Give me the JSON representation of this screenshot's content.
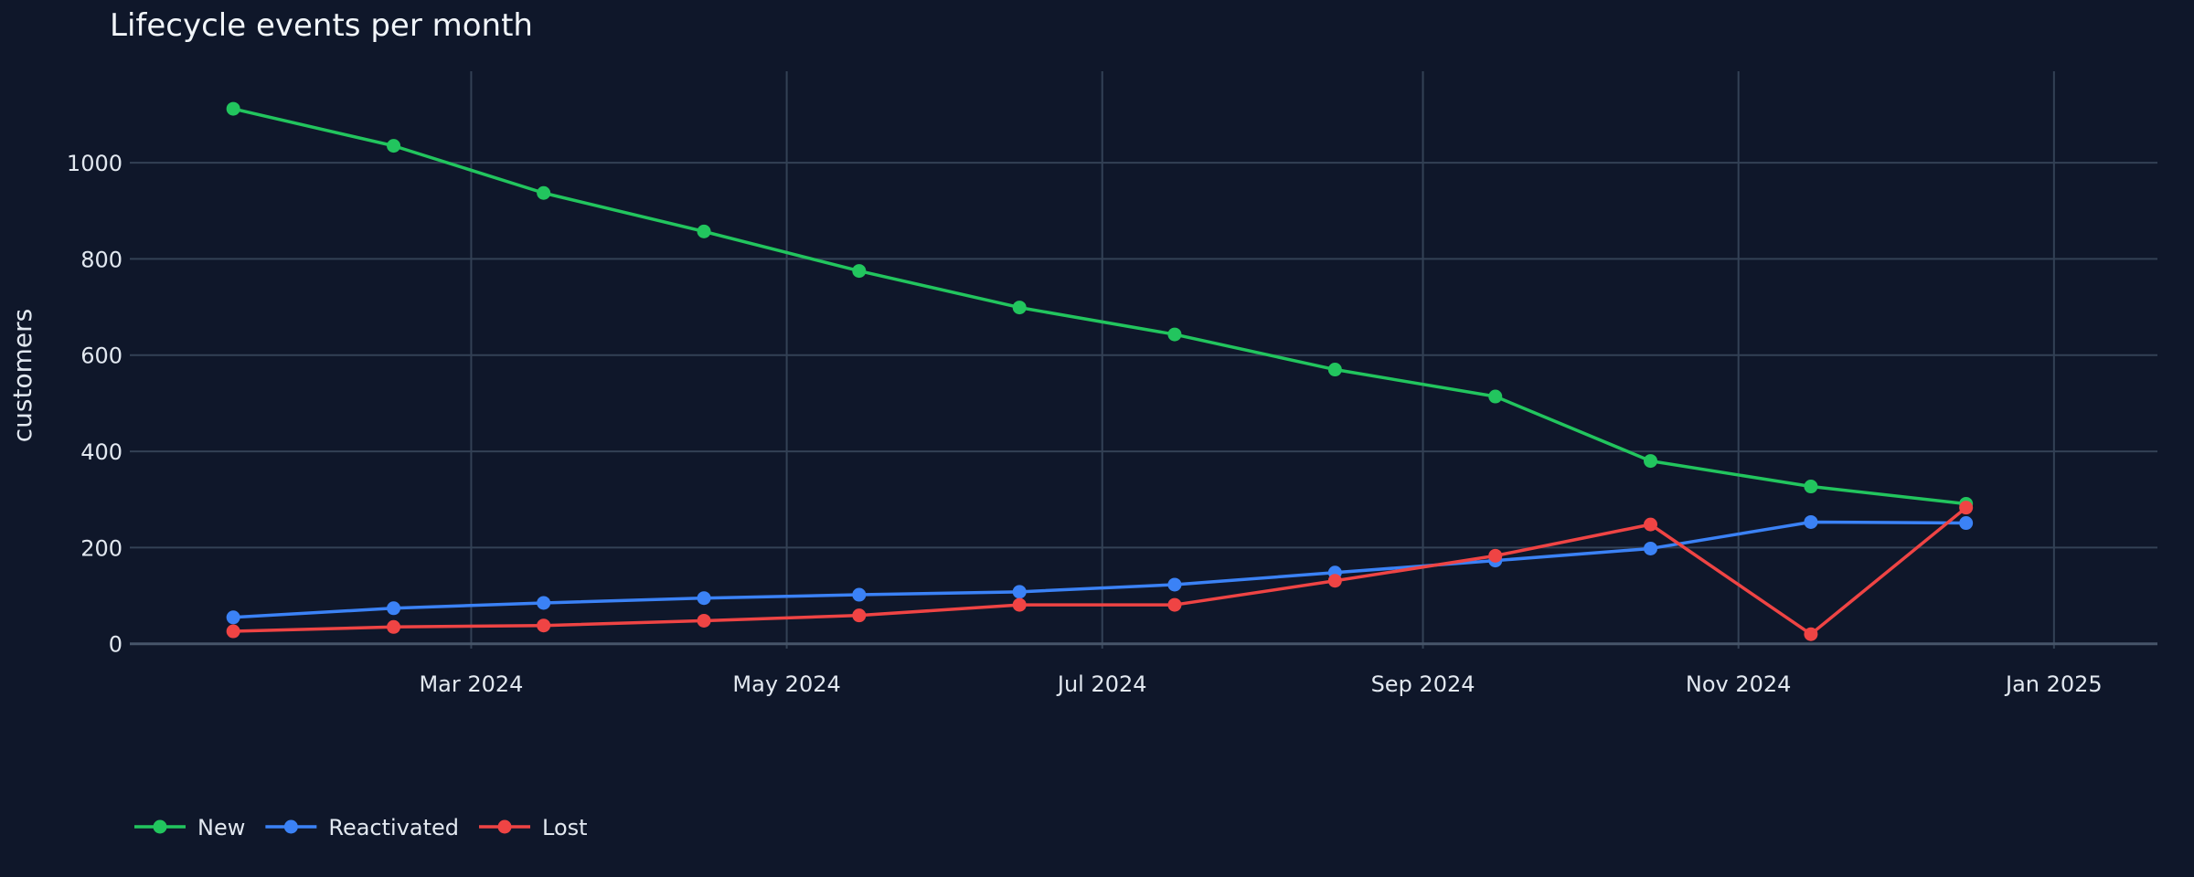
{
  "chart_data": {
    "type": "line",
    "title": "Lifecycle events per month",
    "xlabel": "",
    "ylabel": "customers",
    "x": [
      "2024-01-15",
      "2024-02-15",
      "2024-03-15",
      "2024-04-15",
      "2024-05-15",
      "2024-06-15",
      "2024-07-15",
      "2024-08-15",
      "2024-09-15",
      "2024-10-15",
      "2024-11-15",
      "2024-12-15"
    ],
    "x_ticks": [
      {
        "date": "2024-03-01",
        "label": "Mar 2024"
      },
      {
        "date": "2024-05-01",
        "label": "May 2024"
      },
      {
        "date": "2024-07-01",
        "label": "Jul 2024"
      },
      {
        "date": "2024-09-01",
        "label": "Sep 2024"
      },
      {
        "date": "2024-11-01",
        "label": "Nov 2024"
      },
      {
        "date": "2025-01-01",
        "label": "Jan 2025"
      }
    ],
    "xlim": [
      "2023-12-26",
      "2025-01-21"
    ],
    "ylim": [
      -10,
      1190
    ],
    "y_ticks": [
      0,
      200,
      400,
      600,
      800,
      1000
    ],
    "grid": true,
    "legend_position": "bottom-left",
    "series": [
      {
        "name": "New",
        "color": "#22c55e",
        "values": [
          1112,
          1035,
          937,
          857,
          775,
          699,
          643,
          570,
          514,
          380,
          327,
          291
        ]
      },
      {
        "name": "Reactivated",
        "color": "#3b82f6",
        "values": [
          55,
          74,
          85,
          95,
          102,
          108,
          123,
          148,
          173,
          198,
          253,
          251
        ]
      },
      {
        "name": "Lost",
        "color": "#ef4444",
        "values": [
          26,
          35,
          38,
          48,
          59,
          81,
          81,
          131,
          183,
          248,
          20,
          283
        ]
      }
    ]
  }
}
